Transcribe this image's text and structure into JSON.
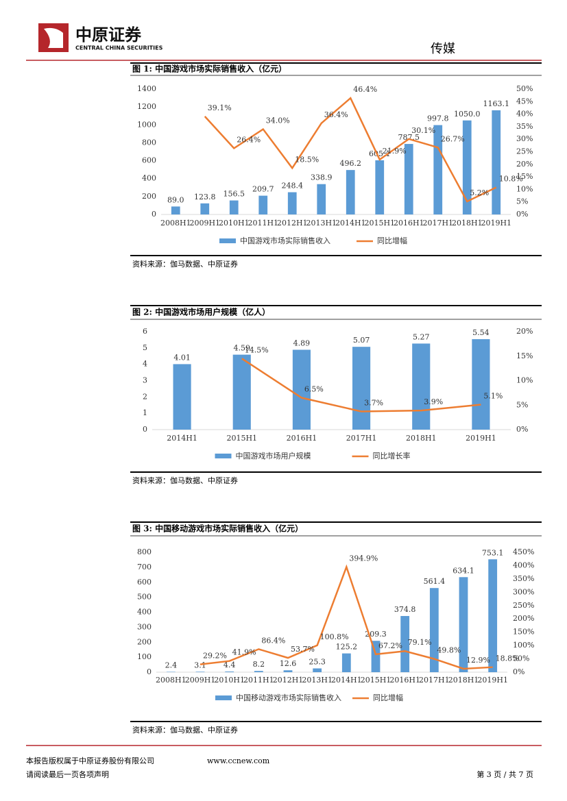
{
  "header": {
    "logo_cn": "中原证券",
    "logo_en": "CENTRAL CHINA SECURITIES",
    "section": "传媒"
  },
  "chart_data": [
    {
      "type": "bar-line",
      "title": "图 1:  中国游戏市场实际销售收入（亿元）",
      "categories": [
        "2008H1",
        "2009H1",
        "2010H1",
        "2011H1",
        "2012H1",
        "2013H1",
        "2014H1",
        "2015H1",
        "2016H1",
        "2017H1",
        "2018H1",
        "2019H1"
      ],
      "series": [
        {
          "name": "中国游戏市场实际销售收入",
          "color": "#5b9bd5",
          "type": "bar",
          "values": [
            89.0,
            123.8,
            156.5,
            209.7,
            248.4,
            338.9,
            496.2,
            605.1,
            787.5,
            997.8,
            1050.0,
            1163.1
          ],
          "value_labels": [
            "89.0",
            "123.8",
            "156.5",
            "209.7",
            "248.4",
            "338.9",
            "496.2",
            "605.1",
            "787.5",
            "997.8",
            "1050.0",
            "1163.1"
          ]
        },
        {
          "name": "同比增幅",
          "color": "#ed7d31",
          "type": "line",
          "axis": "y2",
          "values": [
            null,
            39.1,
            26.4,
            34.0,
            18.5,
            36.4,
            46.4,
            21.9,
            30.1,
            26.7,
            5.2,
            10.8
          ],
          "value_labels": [
            null,
            "39.1%",
            "26.4%",
            "34.0%",
            "18.5%",
            "36.4%",
            "46.4%",
            "21.9%",
            "30.1%",
            "26.7%",
            "5.2%",
            "10.8%"
          ]
        }
      ],
      "ylim": [
        0,
        1400
      ],
      "yticks": [
        0,
        200,
        400,
        600,
        800,
        1000,
        1200,
        1400
      ],
      "y2lim": [
        0,
        50
      ],
      "y2ticks": [
        {
          "value": 0,
          "label": "0%"
        },
        {
          "value": 5,
          "label": "5%"
        },
        {
          "value": 10,
          "label": "10%"
        },
        {
          "value": 15,
          "label": "15%"
        },
        {
          "value": 20,
          "label": "20%"
        },
        {
          "value": 25,
          "label": "25%"
        },
        {
          "value": 30,
          "label": "30%"
        },
        {
          "value": 35,
          "label": "35%"
        },
        {
          "value": 40,
          "label": "40%"
        },
        {
          "value": 45,
          "label": "45%"
        },
        {
          "value": 50,
          "label": "50%"
        }
      ],
      "source": "资料来源：伽马数据、中原证券"
    },
    {
      "type": "bar-line",
      "title": "图 2:  中国游戏市场用户规模（亿人）",
      "categories": [
        "2014H1",
        "2015H1",
        "2016H1",
        "2017H1",
        "2018H1",
        "2019H1"
      ],
      "series": [
        {
          "name": "中国游戏市场用户规模",
          "color": "#5b9bd5",
          "type": "bar",
          "values": [
            4.01,
            4.59,
            4.89,
            5.07,
            5.27,
            5.54
          ],
          "value_labels": [
            "4.01",
            "4.59",
            "4.89",
            "5.07",
            "5.27",
            "5.54"
          ]
        },
        {
          "name": "同比增长率",
          "color": "#ed7d31",
          "type": "line",
          "axis": "y2",
          "values": [
            null,
            14.5,
            6.5,
            3.7,
            3.9,
            5.1
          ],
          "value_labels": [
            null,
            "14.5%",
            "6.5%",
            "3.7%",
            "3.9%",
            "5.1%"
          ]
        }
      ],
      "ylim": [
        0,
        6
      ],
      "yticks": [
        0,
        1,
        2,
        3,
        4,
        5,
        6
      ],
      "y2lim": [
        0,
        20
      ],
      "y2ticks": [
        {
          "value": 0,
          "label": "0%"
        },
        {
          "value": 5,
          "label": "5%"
        },
        {
          "value": 10,
          "label": "10%"
        },
        {
          "value": 15,
          "label": "15%"
        },
        {
          "value": 20,
          "label": "20%"
        }
      ],
      "source": "资料来源：伽马数据、中原证券"
    },
    {
      "type": "bar-line",
      "title": "图 3:  中国移动游戏市场实际销售收入（亿元）",
      "categories": [
        "2008H1",
        "2009H1",
        "2010H1",
        "2011H1",
        "2012H1",
        "2013H1",
        "2014H1",
        "2015H1",
        "2016H1",
        "2017H1",
        "2018H1",
        "2019H1"
      ],
      "series": [
        {
          "name": "中国移动游戏市场实际销售收入",
          "color": "#5b9bd5",
          "type": "bar",
          "values": [
            2.4,
            3.1,
            4.4,
            8.2,
            12.6,
            25.3,
            125.2,
            209.3,
            374.8,
            561.4,
            634.1,
            753.1
          ],
          "value_labels": [
            "2.4",
            "3.1",
            "4.4",
            "8.2",
            "12.6",
            "25.3",
            "125.2",
            "209.3",
            "374.8",
            "561.4",
            "634.1",
            "753.1"
          ]
        },
        {
          "name": "同比增幅",
          "color": "#ed7d31",
          "type": "line",
          "axis": "y2",
          "values": [
            null,
            29.2,
            41.9,
            86.4,
            53.7,
            100.8,
            394.9,
            67.2,
            79.1,
            49.8,
            12.9,
            18.8
          ],
          "value_labels": [
            null,
            "29.2%",
            "41.9%",
            "86.4%",
            "53.7%",
            "100.8%",
            "394.9%",
            "67.2%",
            "79.1%",
            "49.8%",
            "12.9%",
            "18.8%"
          ]
        }
      ],
      "ylim": [
        0,
        800
      ],
      "yticks": [
        0,
        100,
        200,
        300,
        400,
        500,
        600,
        700,
        800
      ],
      "y2lim": [
        0,
        450
      ],
      "y2ticks": [
        {
          "value": 0,
          "label": "0%"
        },
        {
          "value": 50,
          "label": "50%"
        },
        {
          "value": 100,
          "label": "100%"
        },
        {
          "value": 150,
          "label": "150%"
        },
        {
          "value": 200,
          "label": "200%"
        },
        {
          "value": 250,
          "label": "250%"
        },
        {
          "value": 300,
          "label": "300%"
        },
        {
          "value": 350,
          "label": "350%"
        },
        {
          "value": 400,
          "label": "400%"
        },
        {
          "value": 450,
          "label": "450%"
        }
      ],
      "source": "资料来源：伽马数据、中原证券"
    }
  ],
  "footer": {
    "copyright": "本报告版权属于中原证券股份有限公司",
    "website": "www.ccnew.com",
    "disclaimer": "请阅读最后一页各项声明",
    "page": "第 3 页 / 共 7 页"
  }
}
